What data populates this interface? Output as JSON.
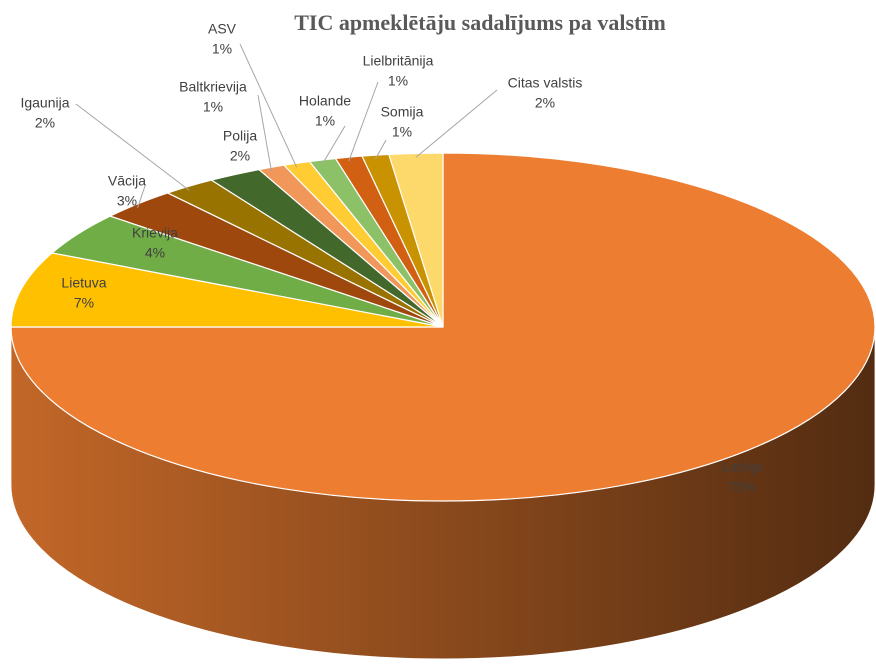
{
  "chart_data": {
    "type": "pie",
    "title": "TIC apmeklētāju sadalījums pa valstīm",
    "categories": [
      "Latvija",
      "Lietuva",
      "Krievija",
      "Vācija",
      "Igaunija",
      "Polija",
      "Baltkrievija",
      "ASV",
      "Holande",
      "Lielbritānija",
      "Somija",
      "Citas valstis"
    ],
    "values": [
      75,
      7,
      4,
      3,
      2,
      2,
      1,
      1,
      1,
      1,
      1,
      2
    ],
    "value_labels": [
      "75%",
      "7%",
      "4%",
      "3%",
      "2%",
      "2%",
      "1%",
      "1%",
      "1%",
      "1%",
      "1%",
      "2%"
    ],
    "colors": [
      "#ed7d31",
      "#ffc000",
      "#70ad47",
      "#9e480e",
      "#997300",
      "#43682b",
      "#f1975a",
      "#ffcd33",
      "#8cc168",
      "#d26012",
      "#c99200",
      "#fdd86a"
    ]
  }
}
